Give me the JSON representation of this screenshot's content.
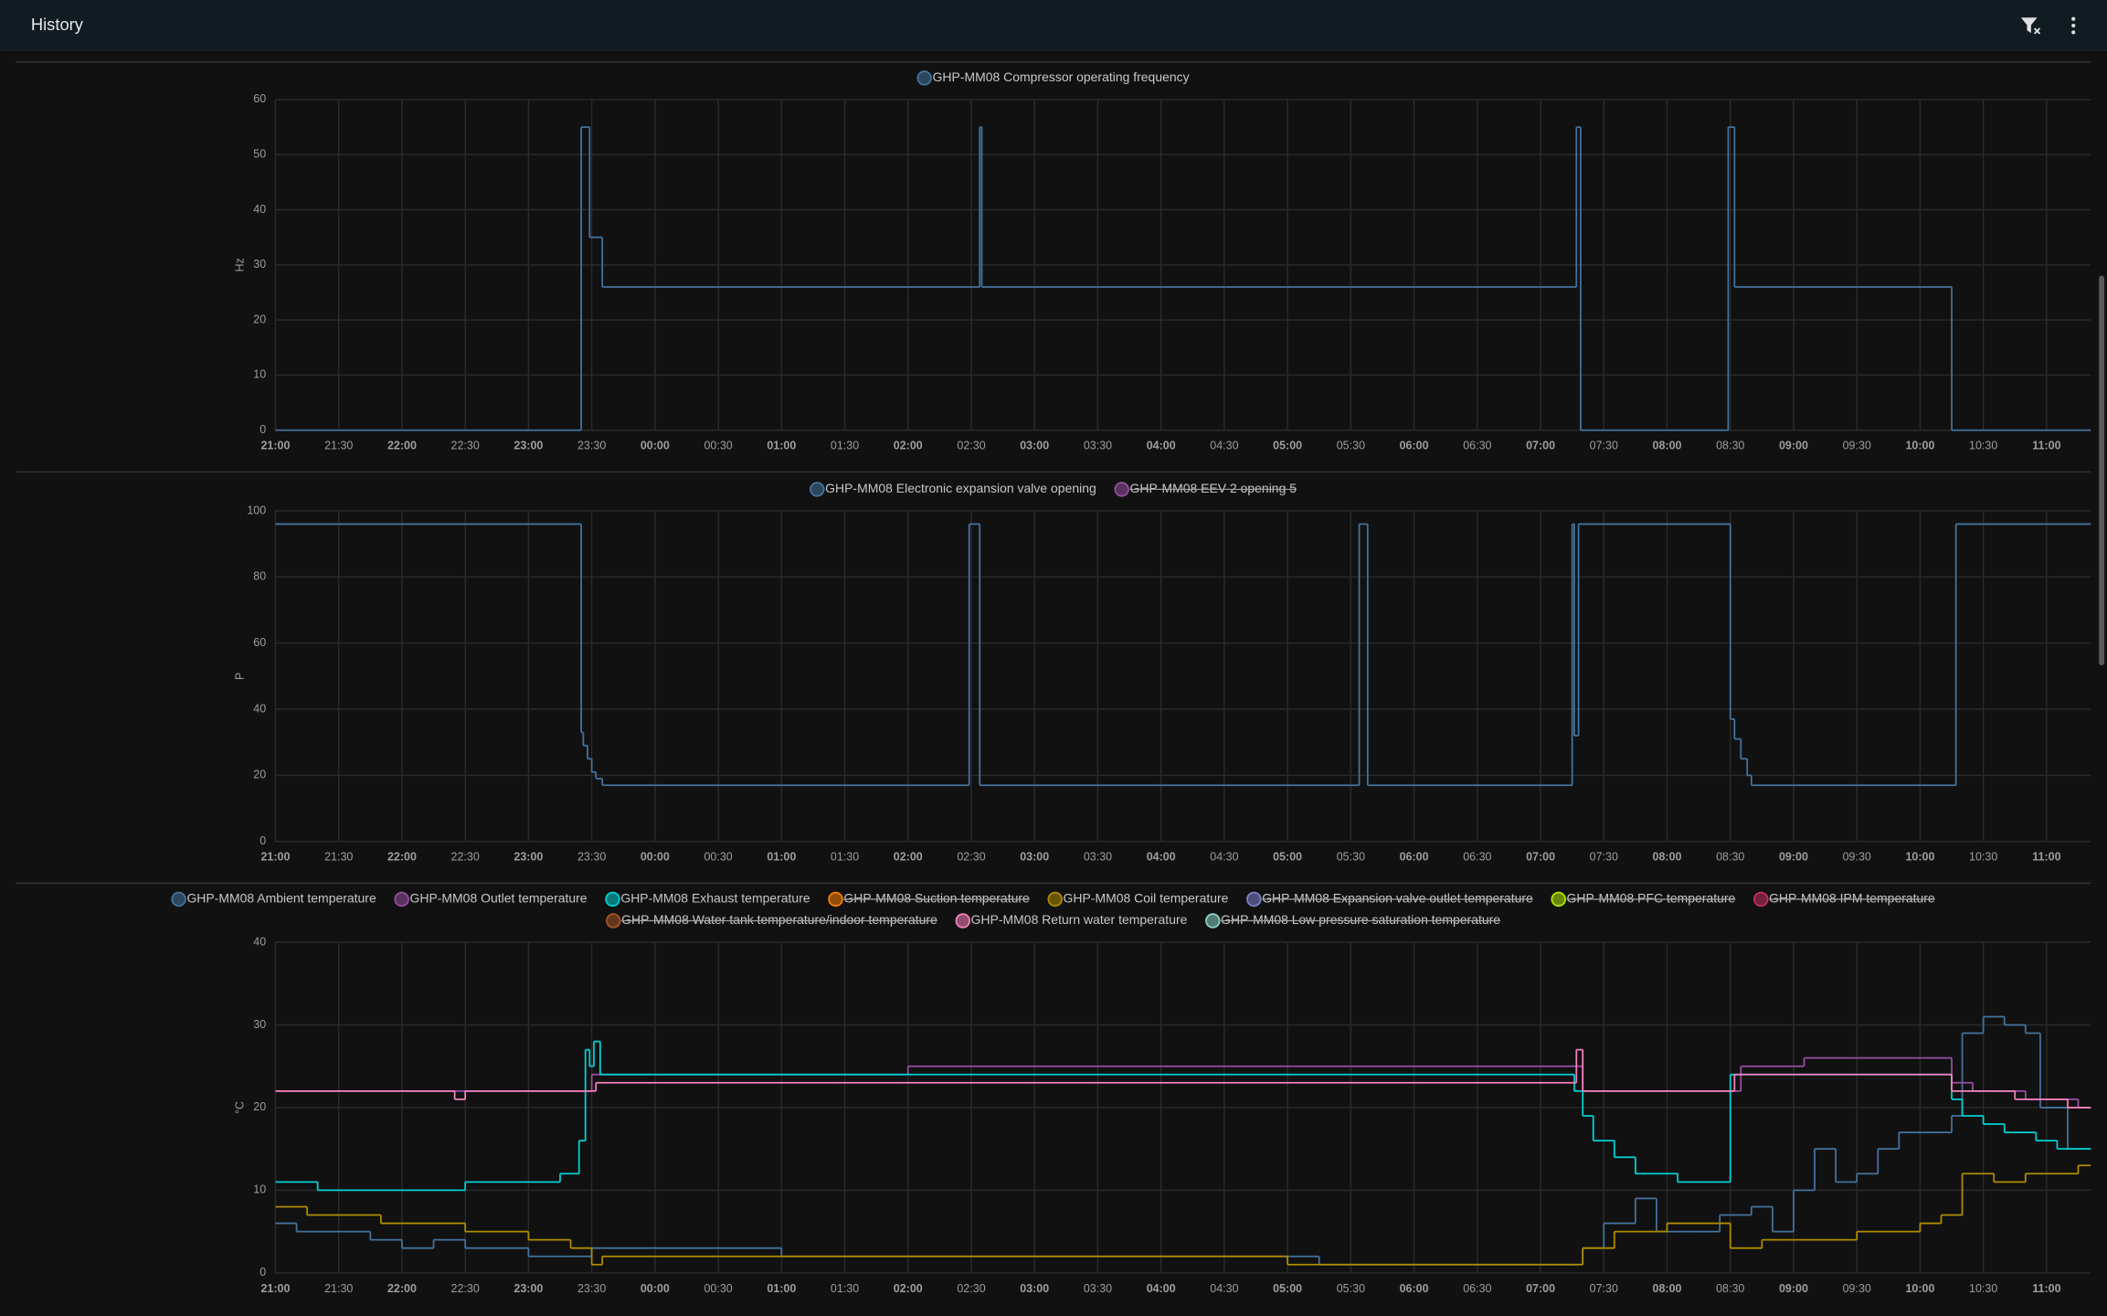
{
  "header": {
    "title": "History"
  },
  "chart_data": [
    {
      "type": "line",
      "step": true,
      "y_label": "Hz",
      "xlim": [
        "21:00",
        "11:21"
      ],
      "ylim": [
        0,
        60
      ],
      "yticks": [
        0,
        10,
        20,
        30,
        40,
        50,
        60
      ],
      "grid": true,
      "xticks": [
        "21:00",
        "21:30",
        "22:00",
        "22:30",
        "23:00",
        "23:30",
        "00:00",
        "00:30",
        "01:00",
        "01:30",
        "02:00",
        "02:30",
        "03:00",
        "03:30",
        "04:00",
        "04:30",
        "05:00",
        "05:30",
        "06:00",
        "06:30",
        "07:00",
        "07:30",
        "08:00",
        "08:30",
        "09:00",
        "09:30",
        "10:00",
        "10:30",
        "11:00"
      ],
      "series": [
        {
          "name": "GHP-MM08 Compressor operating frequency",
          "color": "#44739e",
          "x": [
            "21:00",
            "23:25",
            "23:29",
            "23:35",
            "02:34",
            "02:35",
            "07:17",
            "07:19",
            "08:29",
            "08:32",
            "10:15",
            "11:21"
          ],
          "values": [
            0,
            55,
            35,
            26,
            55,
            26,
            55,
            0,
            55,
            26,
            0,
            0
          ]
        }
      ]
    },
    {
      "type": "line",
      "step": true,
      "y_label": "P",
      "xlim": [
        "21:00",
        "11:21"
      ],
      "ylim": [
        0,
        100
      ],
      "yticks": [
        0,
        20,
        40,
        60,
        80,
        100
      ],
      "grid": true,
      "xticks": [
        "21:00",
        "21:30",
        "22:00",
        "22:30",
        "23:00",
        "23:30",
        "00:00",
        "00:30",
        "01:00",
        "01:30",
        "02:00",
        "02:30",
        "03:00",
        "03:30",
        "04:00",
        "04:30",
        "05:00",
        "05:30",
        "06:00",
        "06:30",
        "07:00",
        "07:30",
        "08:00",
        "08:30",
        "09:00",
        "09:30",
        "10:00",
        "10:30",
        "11:00"
      ],
      "series": [
        {
          "name": "GHP-MM08 Electronic expansion valve opening",
          "color": "#44739e",
          "x": [
            "21:00",
            "23:25",
            "23:26",
            "23:28",
            "23:30",
            "23:32",
            "23:35",
            "02:29",
            "02:34",
            "05:34",
            "05:38",
            "07:15",
            "07:16",
            "07:18",
            "08:30",
            "08:32",
            "08:35",
            "08:38",
            "08:40",
            "10:17"
          ],
          "values": [
            96,
            33,
            29,
            25,
            21,
            19,
            17,
            96,
            17,
            96,
            17,
            96,
            32,
            96,
            37,
            31,
            25,
            20,
            17,
            96
          ]
        },
        {
          "name": "GHP-MM08 EEV-2 opening 5",
          "color": "#984ea3",
          "hidden": true
        }
      ]
    },
    {
      "type": "line",
      "step": true,
      "y_label": "°C",
      "xlim": [
        "21:00",
        "11:21"
      ],
      "ylim": [
        0,
        40
      ],
      "yticks": [
        0,
        10,
        20,
        30,
        40
      ],
      "grid": true,
      "xticks": [
        "21:00",
        "21:30",
        "22:00",
        "22:30",
        "23:00",
        "23:30",
        "00:00",
        "00:30",
        "01:00",
        "01:30",
        "02:00",
        "02:30",
        "03:00",
        "03:30",
        "04:00",
        "04:30",
        "05:00",
        "05:30",
        "06:00",
        "06:30",
        "07:00",
        "07:30",
        "08:00",
        "08:30",
        "09:00",
        "09:30",
        "10:00",
        "10:30",
        "11:00"
      ],
      "series": [
        {
          "name": "GHP-MM08 Ambient temperature",
          "color": "#44739e",
          "x": [
            "21:00",
            "21:10",
            "21:45",
            "22:00",
            "22:15",
            "22:30",
            "23:00",
            "23:30",
            "01:00",
            "05:00",
            "05:15",
            "06:00",
            "07:00",
            "07:20",
            "07:30",
            "07:45",
            "07:55",
            "08:10",
            "08:25",
            "08:40",
            "08:50",
            "09:00",
            "09:10",
            "09:20",
            "09:30",
            "09:40",
            "09:50",
            "10:05",
            "10:15",
            "10:20",
            "10:30",
            "10:40",
            "10:50",
            "10:57",
            "11:10"
          ],
          "values": [
            6,
            5,
            4,
            3,
            4,
            3,
            2,
            3,
            2,
            2,
            1,
            1,
            1,
            3,
            6,
            9,
            5,
            5,
            7,
            8,
            5,
            10,
            15,
            11,
            12,
            15,
            17,
            17,
            19,
            29,
            31,
            30,
            29,
            20,
            15
          ]
        },
        {
          "name": "GHP-MM08 Outlet temperature",
          "color": "#984ea3",
          "x": [
            "21:00",
            "23:30",
            "02:00",
            "07:15",
            "07:20",
            "08:30",
            "08:35",
            "09:05",
            "10:15",
            "10:25",
            "10:50",
            "11:15"
          ],
          "values": [
            22,
            24,
            25,
            25,
            22,
            22,
            25,
            26,
            23,
            22,
            21,
            20
          ]
        },
        {
          "name": "GHP-MM08 Exhaust temperature",
          "color": "#00d2d5",
          "x": [
            "21:00",
            "21:20",
            "22:30",
            "23:15",
            "23:24",
            "23:27",
            "23:29",
            "23:31",
            "23:34",
            "07:16",
            "07:20",
            "07:25",
            "07:35",
            "07:45",
            "08:05",
            "08:30",
            "10:15",
            "10:20",
            "10:30",
            "10:40",
            "10:55",
            "11:05",
            "11:15"
          ],
          "values": [
            11,
            10,
            11,
            12,
            16,
            27,
            25,
            28,
            24,
            22,
            19,
            16,
            14,
            12,
            11,
            24,
            21,
            19,
            18,
            17,
            16,
            15,
            15
          ]
        },
        {
          "name": "GHP-MM08 Suction temperature",
          "color": "#ff7f00",
          "hidden": true
        },
        {
          "name": "GHP-MM08 Coil temperature",
          "color": "#af8d00",
          "x": [
            "21:00",
            "21:15",
            "21:50",
            "22:30",
            "23:00",
            "23:20",
            "23:30",
            "23:35",
            "05:00",
            "07:10",
            "07:20",
            "07:35",
            "08:00",
            "08:30",
            "08:45",
            "09:30",
            "10:00",
            "10:10",
            "10:20",
            "10:35",
            "10:50",
            "11:15"
          ],
          "values": [
            8,
            7,
            6,
            5,
            4,
            3,
            1,
            2,
            1,
            1,
            3,
            5,
            6,
            3,
            4,
            5,
            6,
            7,
            12,
            11,
            12,
            13
          ]
        },
        {
          "name": "GHP-MM08 Expansion valve outlet temperature",
          "color": "#7f80cd",
          "hidden": true
        },
        {
          "name": "GHP-MM08 PFC temperature",
          "color": "#b3e900",
          "hidden": true
        },
        {
          "name": "GHP-MM08 IPM temperature",
          "color": "#c42e60",
          "hidden": true
        },
        {
          "name": "GHP-MM08 Water tank temperature/indoor temperature",
          "color": "#a65628",
          "hidden": true
        },
        {
          "name": "GHP-MM08 Return water temperature",
          "color": "#f781bf",
          "x": [
            "21:00",
            "22:25",
            "22:30",
            "23:30",
            "23:32",
            "07:15",
            "07:17",
            "07:20",
            "08:30",
            "08:32",
            "10:15",
            "10:45",
            "11:10"
          ],
          "values": [
            22,
            21,
            22,
            22,
            23,
            23,
            27,
            22,
            22,
            24,
            22,
            21,
            20
          ]
        },
        {
          "name": "GHP-MM08 Low pressure saturation temperature",
          "color": "#8dd3c7",
          "hidden": true
        }
      ]
    }
  ]
}
